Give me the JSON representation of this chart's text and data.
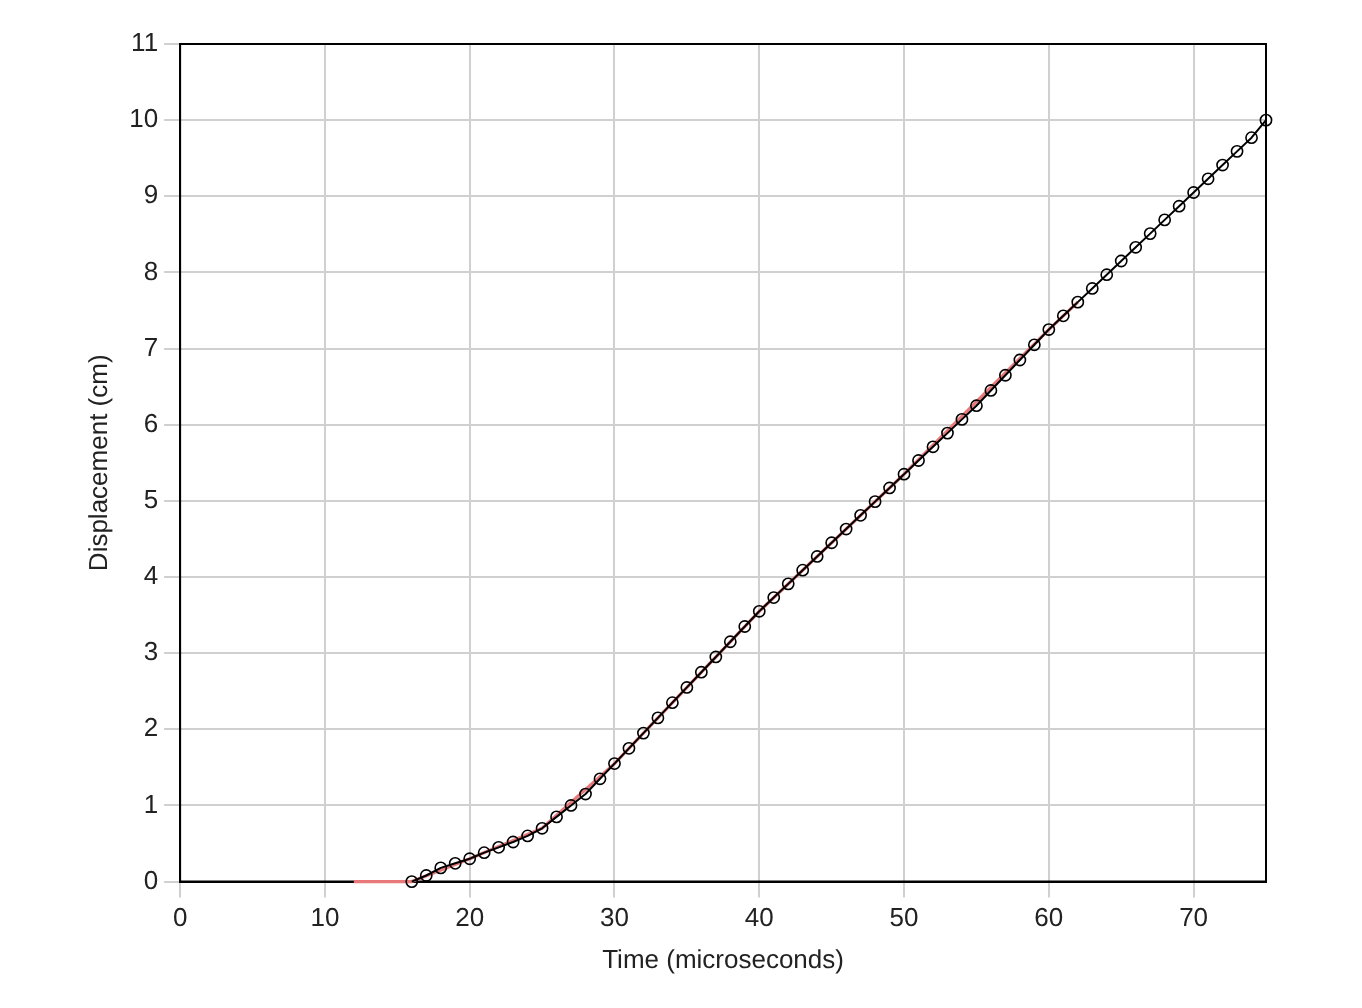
{
  "chart_data": {
    "type": "line",
    "xlabel": "Time (microseconds)",
    "ylabel": "Displacement (cm)",
    "xlim": [
      0,
      75
    ],
    "xticks": [
      0,
      10,
      20,
      30,
      40,
      50,
      60,
      70
    ],
    "ylim": [
      0,
      11
    ],
    "yticks": [
      0,
      1,
      2,
      3,
      4,
      5,
      6,
      7,
      8,
      9,
      10,
      11
    ],
    "grid": true,
    "series": [
      {
        "color": "#e8787a",
        "marker": "none",
        "x": [
          12,
          15,
          16,
          20,
          25,
          30,
          40,
          50,
          60,
          62
        ],
        "values": [
          0,
          0,
          0,
          0.3,
          0.7,
          1.55,
          3.55,
          5.35,
          7.25,
          7.61
        ]
      },
      {
        "color": "#000000",
        "marker": "circle",
        "x": [
          16,
          17,
          18,
          19,
          20,
          21,
          22,
          23,
          24,
          25,
          26,
          27,
          28,
          29,
          30,
          31,
          32,
          33,
          34,
          35,
          36,
          37,
          38,
          39,
          40,
          41,
          42,
          43,
          44,
          45,
          46,
          47,
          48,
          49,
          50,
          51,
          52,
          53,
          54,
          55,
          56,
          57,
          58,
          59,
          60,
          61,
          62,
          63,
          64,
          65,
          66,
          67,
          68,
          69,
          70,
          71,
          72,
          73,
          74,
          75
        ],
        "values": [
          0,
          0.08,
          0.18,
          0.24,
          0.3,
          0.38,
          0.45,
          0.52,
          0.6,
          0.7,
          0.85,
          1.0,
          1.15,
          1.35,
          1.55,
          1.75,
          1.95,
          2.15,
          2.35,
          2.55,
          2.75,
          2.95,
          3.15,
          3.35,
          3.55,
          3.73,
          3.91,
          4.09,
          4.27,
          4.45,
          4.63,
          4.81,
          4.99,
          5.17,
          5.35,
          5.53,
          5.71,
          5.89,
          6.07,
          6.25,
          6.45,
          6.65,
          6.85,
          7.05,
          7.25,
          7.43,
          7.61,
          7.79,
          7.97,
          8.15,
          8.33,
          8.51,
          8.69,
          8.87,
          9.05,
          9.23,
          9.41,
          9.59,
          9.77,
          10.0
        ]
      }
    ]
  }
}
